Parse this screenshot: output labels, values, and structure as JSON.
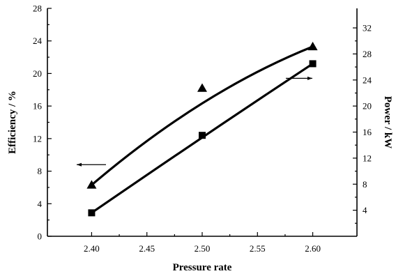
{
  "chart_data": {
    "type": "line",
    "xlabel": "Pressure rate",
    "ylabel_left": "Efficiency / %",
    "ylabel_right": "Power / kW",
    "xlim": [
      2.36,
      2.64
    ],
    "ylim_left": [
      0,
      28
    ],
    "ylim_right": [
      0,
      35
    ],
    "xticks": [
      2.4,
      2.45,
      2.5,
      2.55,
      2.6
    ],
    "yticks_left": [
      0,
      4,
      8,
      12,
      16,
      20,
      24,
      28
    ],
    "yticks_right": [
      4,
      8,
      12,
      16,
      20,
      24,
      28,
      32
    ],
    "series": [
      {
        "marker": "triangle",
        "axis": "left",
        "x": [
          2.4,
          2.5,
          2.6
        ],
        "y": [
          6.3,
          18.2,
          23.3
        ]
      },
      {
        "marker": "square",
        "axis": "right",
        "x": [
          2.4,
          2.5,
          2.6
        ],
        "y": [
          3.6,
          15.5,
          26.5
        ]
      }
    ],
    "annotations": [
      {
        "type": "arrow",
        "points_to": "left-axis",
        "series": 0
      },
      {
        "type": "arrow",
        "points_to": "right-axis",
        "series": 1
      }
    ],
    "grid": false
  }
}
